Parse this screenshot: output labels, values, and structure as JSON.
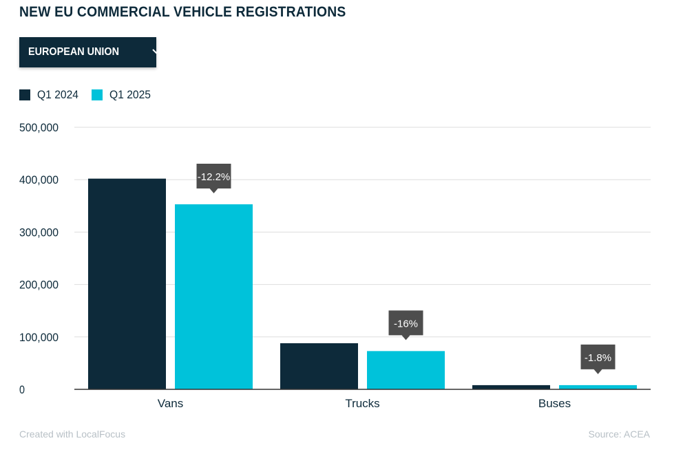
{
  "header": {
    "title": "NEW EU COMMERCIAL VEHICLE REGISTRATIONS"
  },
  "filter": {
    "selected": "EUROPEAN UNION",
    "icon": "chevron-down-icon"
  },
  "footer": {
    "credit": "Created with LocalFocus",
    "source": "Source:  ACEA"
  },
  "colors": {
    "q1_2024": "#0d2a3a",
    "q1_2025": "#00c2da",
    "badge": "#4d4d4d",
    "grid": "#dddddd"
  },
  "chart_data": {
    "type": "bar",
    "categories": [
      "Vans",
      "Trucks",
      "Buses"
    ],
    "series": [
      {
        "name": "Q1 2024",
        "values": [
          402000,
          88000,
          8000
        ]
      },
      {
        "name": "Q1 2025",
        "values": [
          353000,
          73000,
          8000
        ]
      }
    ],
    "annotations": [
      "-12.2%",
      "-16%",
      "-1.8%"
    ],
    "ylim": [
      0,
      500000
    ],
    "yticks": [
      0,
      100000,
      200000,
      300000,
      400000,
      500000
    ],
    "ytick_labels": [
      "0",
      "100,000",
      "200,000",
      "300,000",
      "400,000",
      "500,000"
    ],
    "grid": true,
    "legend_position": "top-left"
  }
}
